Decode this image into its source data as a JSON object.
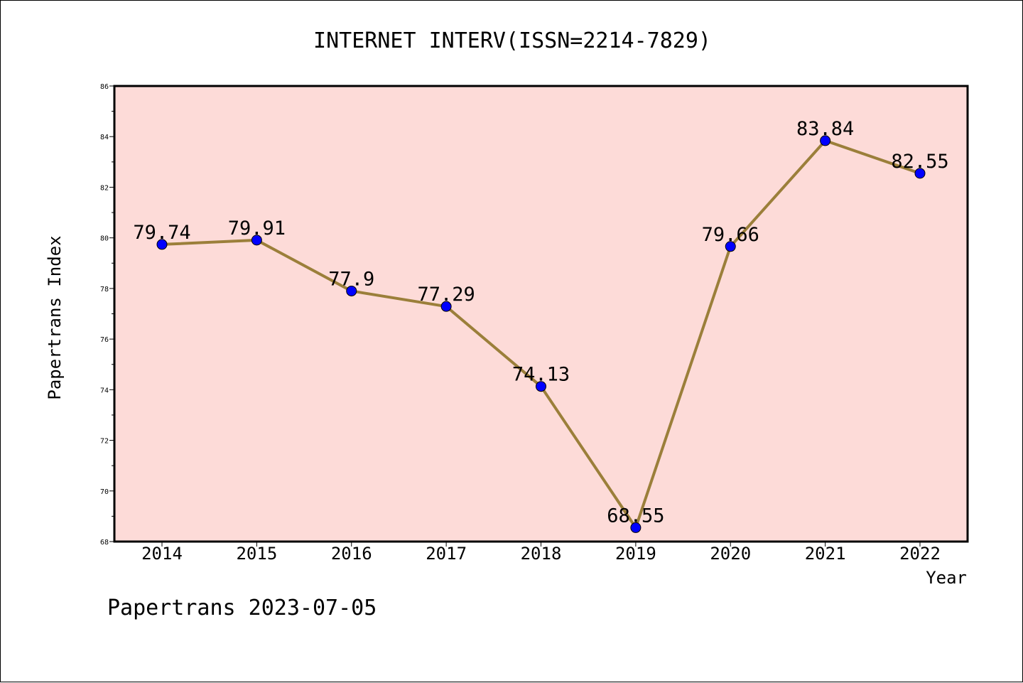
{
  "chart_data": {
    "type": "line",
    "title": "INTERNET INTERV(ISSN=2214-7829)",
    "xlabel": "Year",
    "ylabel": "Papertrans Index",
    "categories": [
      "2014",
      "2015",
      "2016",
      "2017",
      "2018",
      "2019",
      "2020",
      "2021",
      "2022"
    ],
    "series": [
      {
        "values": [
          79.74,
          79.91,
          77.9,
          77.29,
          74.13,
          68.55,
          79.66,
          83.84,
          82.55
        ],
        "labels": [
          "79.74",
          "79.91",
          "77.9",
          "77.29",
          "74.13",
          "68.55",
          "79.66",
          "83.84",
          "82.55"
        ]
      }
    ],
    "ylim": [
      68,
      86
    ],
    "yticks": [
      "68",
      "70",
      "72",
      "74",
      "76",
      "78",
      "80",
      "82",
      "84",
      "86"
    ],
    "grid": false,
    "legend": "none"
  },
  "colors": {
    "plot_background": "#fddbd8",
    "line": "#9b7f3a",
    "marker": "#0000ff"
  },
  "footer": {
    "text": "Papertrans 2023-07-05"
  }
}
